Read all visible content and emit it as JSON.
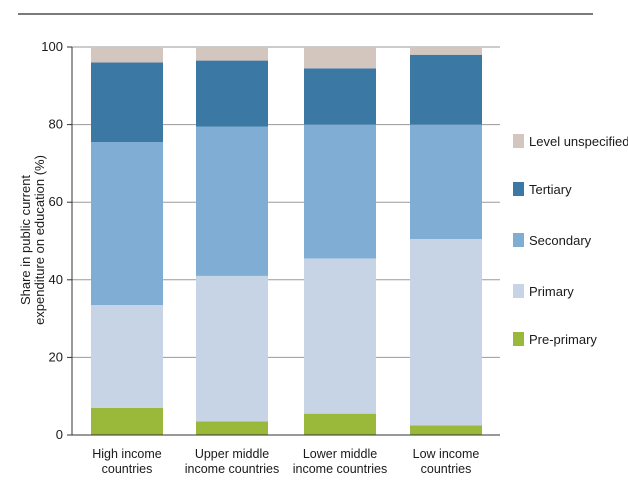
{
  "chart_data": {
    "type": "bar",
    "stacked": true,
    "title": "",
    "xlabel": "",
    "ylabel": "Share in public current expenditure on education (%)",
    "ylabel_lines": [
      "Share in public current",
      "expenditure on education (%)"
    ],
    "ylim": [
      0,
      100
    ],
    "yticks": [
      0,
      20,
      40,
      60,
      80,
      100
    ],
    "grid": true,
    "legend_position": "right",
    "categories": [
      [
        "High income",
        "countries"
      ],
      [
        "Upper middle",
        "income countries"
      ],
      [
        "Lower middle",
        "income countries"
      ],
      [
        "Low income",
        "countries"
      ]
    ],
    "series": [
      {
        "name": "Pre-primary",
        "color": "#9ab83a",
        "values": [
          7,
          3.5,
          5.5,
          2.5
        ]
      },
      {
        "name": "Primary",
        "color": "#c6d4e6",
        "values": [
          26.5,
          37.5,
          40,
          48
        ]
      },
      {
        "name": "Secondary",
        "color": "#7fadd3",
        "values": [
          42,
          38.5,
          34.5,
          29.5
        ]
      },
      {
        "name": "Tertiary",
        "color": "#3b78a3",
        "values": [
          20.5,
          17,
          14.5,
          18
        ]
      },
      {
        "name": "Level unspecified",
        "color": "#d2c6be",
        "values": [
          4,
          3.5,
          5.5,
          2
        ]
      }
    ]
  }
}
